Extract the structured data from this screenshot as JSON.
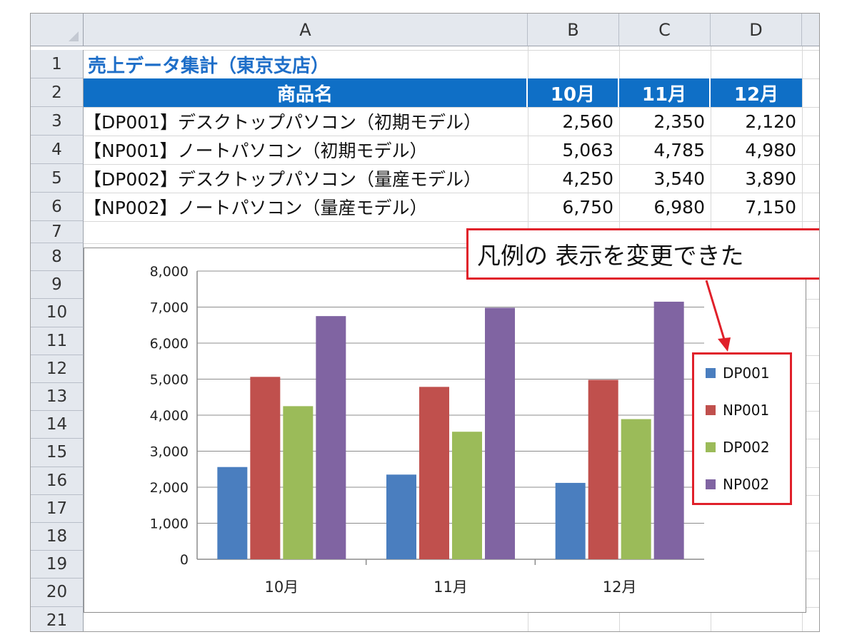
{
  "columns": [
    "A",
    "B",
    "C",
    "D"
  ],
  "rows": [
    "1",
    "2",
    "3",
    "4",
    "5",
    "6",
    "7",
    "8",
    "9",
    "10",
    "11",
    "12",
    "13",
    "14",
    "15",
    "16",
    "17",
    "18",
    "19",
    "20",
    "21"
  ],
  "sheet": {
    "title": "売上データ集計（東京支店）",
    "header": {
      "name": "商品名",
      "m1": "10月",
      "m2": "11月",
      "m3": "12月"
    },
    "data_rows": [
      {
        "name": "【DP001】デスクトップパソコン（初期モデル）",
        "m1": "2,560",
        "m2": "2,350",
        "m3": "2,120"
      },
      {
        "name": "【NP001】ノートパソコン（初期モデル）",
        "m1": "5,063",
        "m2": "4,785",
        "m3": "4,980"
      },
      {
        "name": "【DP002】デスクトップパソコン（量産モデル）",
        "m1": "4,250",
        "m2": "3,540",
        "m3": "3,890"
      },
      {
        "name": "【NP002】ノートパソコン（量産モデル）",
        "m1": "6,750",
        "m2": "6,980",
        "m3": "7,150"
      }
    ]
  },
  "annotation": {
    "text": "凡例の 表示を変更できた"
  },
  "colors": {
    "accent": "#e0202a",
    "header_bg": "#0f6fc6",
    "title": "#1e6ec8"
  },
  "chart_data": {
    "type": "bar",
    "categories": [
      "10月",
      "11月",
      "12月"
    ],
    "series": [
      {
        "name": "DP001",
        "color": "#4a7ebf",
        "values": [
          2560,
          2350,
          2120
        ]
      },
      {
        "name": "NP001",
        "color": "#c0504d",
        "values": [
          5063,
          4785,
          4980
        ]
      },
      {
        "name": "DP002",
        "color": "#9bbb59",
        "values": [
          4250,
          3540,
          3890
        ]
      },
      {
        "name": "NP002",
        "color": "#8064a2",
        "values": [
          6750,
          6980,
          7150
        ]
      }
    ],
    "ylim": [
      0,
      8000
    ],
    "yticks": [
      "0",
      "1,000",
      "2,000",
      "3,000",
      "4,000",
      "5,000",
      "6,000",
      "7,000",
      "8,000"
    ],
    "grid": true,
    "legend_position": "right"
  }
}
